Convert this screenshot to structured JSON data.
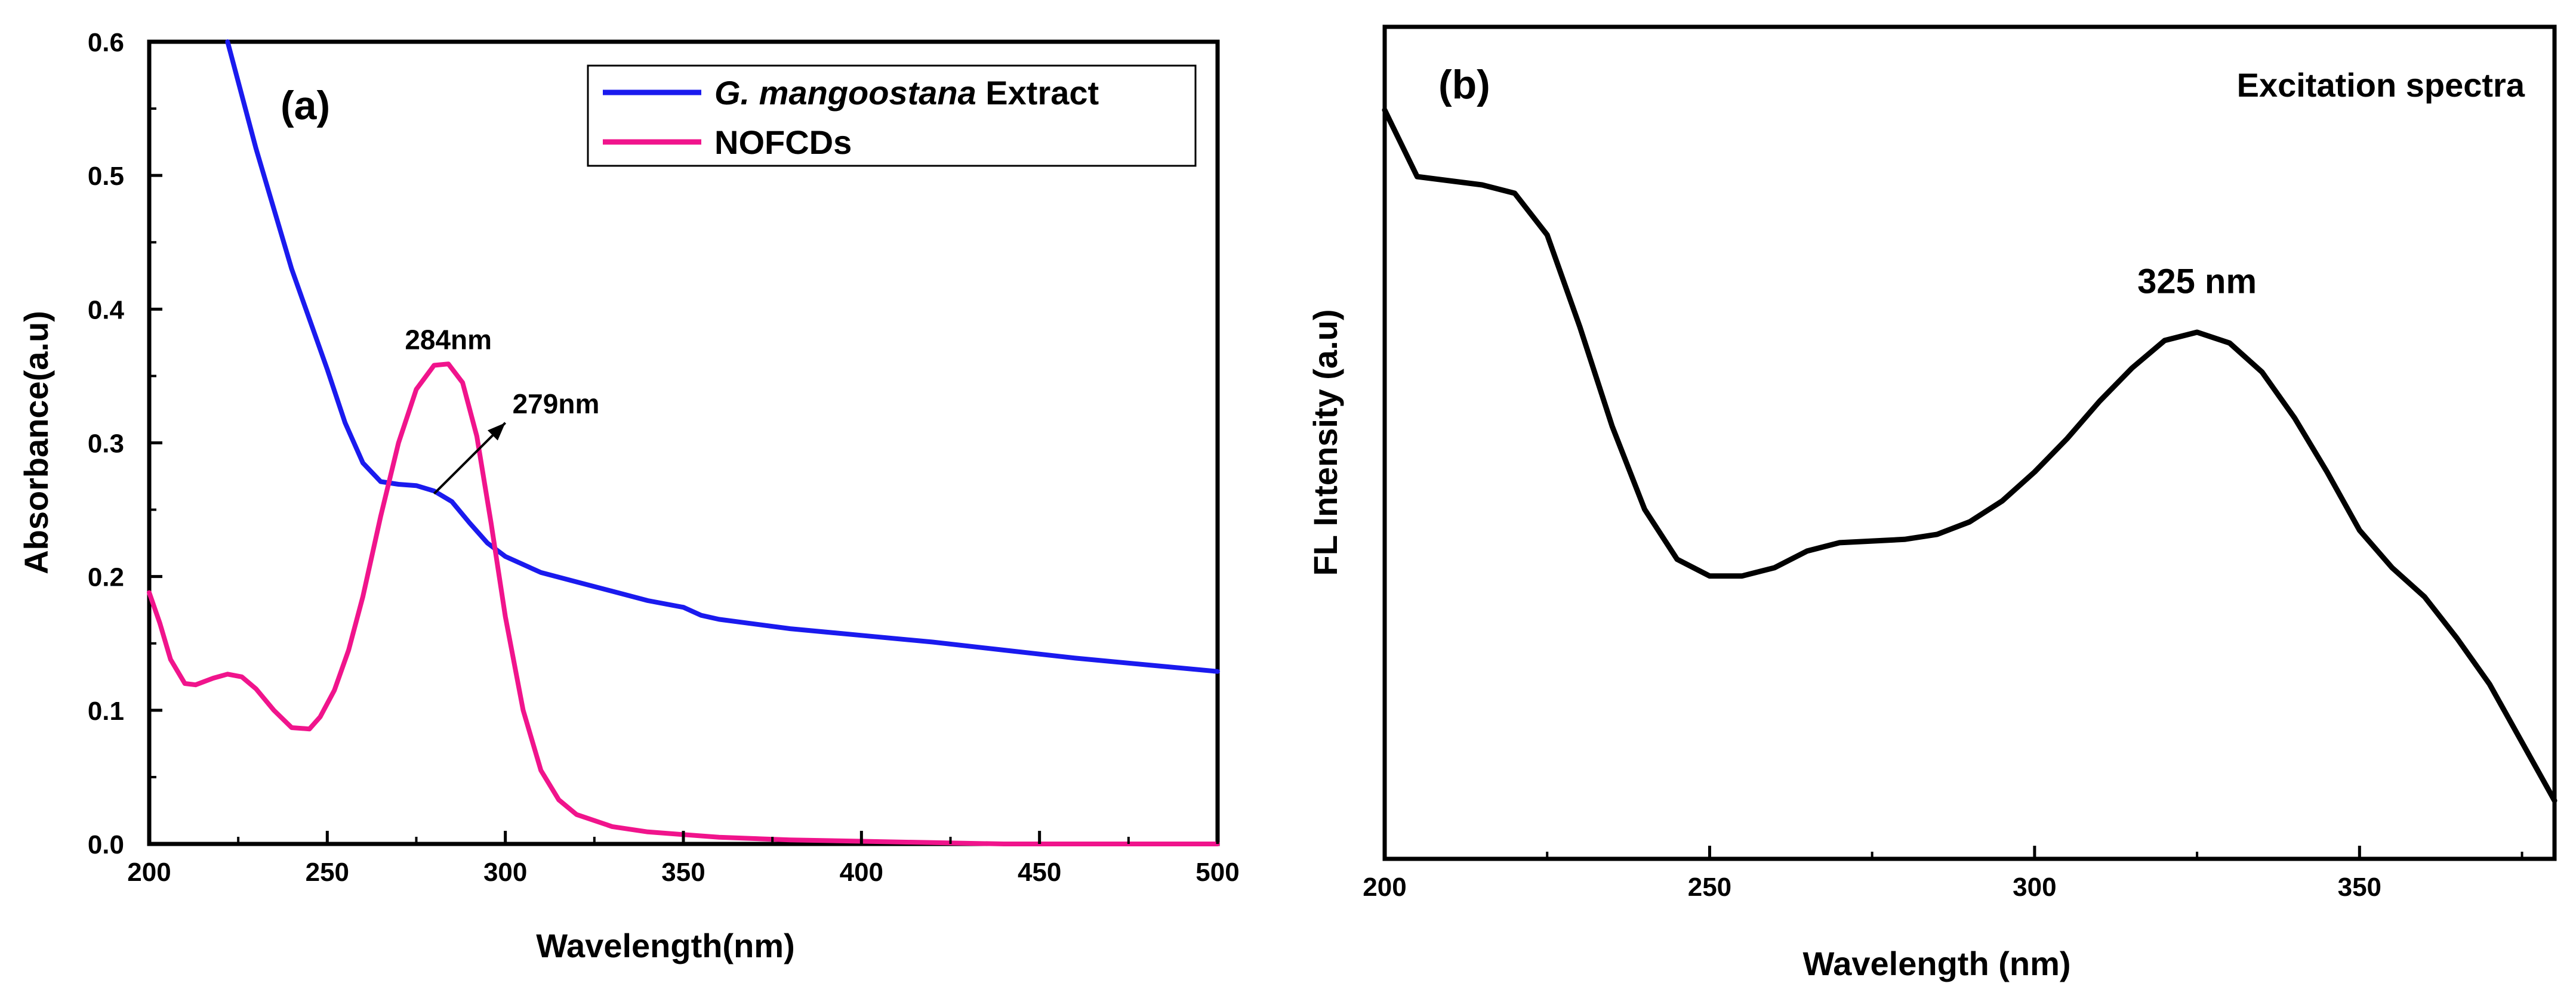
{
  "chart_data": [
    {
      "type": "line",
      "panel_label": "(a)",
      "xlabel": "Wavelength(nm)",
      "ylabel": "Absorbance(a.u)",
      "xlim": [
        200,
        500
      ],
      "ylim": [
        0,
        0.6
      ],
      "xticks": [
        "200",
        "250",
        "300",
        "350",
        "400",
        "450",
        "500"
      ],
      "yticks": [
        "0.0",
        "0.1",
        "0.2",
        "0.3",
        "0.4",
        "0.5",
        "0.6"
      ],
      "legend_position": "top-right",
      "series": [
        {
          "name": "G. mangoostana Extract",
          "legend_italic": "G. mangoostana",
          "legend_rest": " Extract",
          "color": "#1a1aee",
          "x": [
            222,
            230,
            240,
            250,
            255,
            260,
            265,
            270,
            275,
            280,
            285,
            290,
            295,
            300,
            310,
            320,
            330,
            340,
            350,
            355,
            360,
            380,
            400,
            420,
            440,
            460,
            480,
            500
          ],
          "y": [
            0.6,
            0.52,
            0.43,
            0.355,
            0.315,
            0.285,
            0.271,
            0.269,
            0.268,
            0.264,
            0.256,
            0.24,
            0.225,
            0.215,
            0.203,
            0.196,
            0.189,
            0.182,
            0.177,
            0.171,
            0.168,
            0.161,
            0.156,
            0.151,
            0.145,
            0.139,
            0.134,
            0.129
          ]
        },
        {
          "name": "NOFCDs",
          "color": "#f0148c",
          "x": [
            200,
            203,
            206,
            210,
            213,
            218,
            222,
            226,
            230,
            235,
            240,
            245,
            248,
            252,
            256,
            260,
            265,
            270,
            275,
            280,
            284,
            288,
            292,
            296,
            300,
            305,
            310,
            315,
            320,
            330,
            340,
            360,
            380,
            400,
            420,
            440,
            460,
            480,
            500
          ],
          "y": [
            0.188,
            0.165,
            0.138,
            0.12,
            0.119,
            0.124,
            0.127,
            0.125,
            0.116,
            0.1,
            0.087,
            0.086,
            0.095,
            0.115,
            0.145,
            0.185,
            0.245,
            0.3,
            0.34,
            0.358,
            0.359,
            0.345,
            0.305,
            0.24,
            0.17,
            0.1,
            0.055,
            0.033,
            0.022,
            0.013,
            0.009,
            0.005,
            0.003,
            0.002,
            0.001,
            0.0,
            0.0,
            0.0,
            0.0
          ]
        }
      ],
      "annotations": [
        {
          "text": "284nm",
          "x": 284,
          "y": 0.37
        },
        {
          "text": "279nm",
          "arrow_from": [
            280,
            0.262
          ],
          "arrow_to": [
            300,
            0.315
          ],
          "x": 302,
          "y": 0.322
        }
      ]
    },
    {
      "type": "line",
      "panel_label": "(b)",
      "title": "Excitation spectra",
      "xlabel": "Wavelength (nm)",
      "ylabel": "FL Intensity (a.u)",
      "xlim": [
        200,
        380
      ],
      "ylim": [
        0,
        1
      ],
      "xticks": [
        "200",
        "250",
        "300",
        "350"
      ],
      "yticks": [],
      "series": [
        {
          "name": "Excitation",
          "color": "#000000",
          "x": [
            200,
            205,
            215,
            220,
            225,
            230,
            235,
            240,
            245,
            250,
            255,
            260,
            265,
            270,
            275,
            280,
            285,
            290,
            295,
            300,
            305,
            310,
            315,
            320,
            325,
            330,
            335,
            340,
            345,
            350,
            355,
            360,
            365,
            370,
            375,
            380
          ],
          "y": [
            0.9,
            0.82,
            0.81,
            0.8,
            0.75,
            0.64,
            0.52,
            0.42,
            0.36,
            0.34,
            0.34,
            0.35,
            0.37,
            0.38,
            0.382,
            0.384,
            0.39,
            0.405,
            0.43,
            0.465,
            0.505,
            0.55,
            0.59,
            0.623,
            0.633,
            0.62,
            0.585,
            0.53,
            0.465,
            0.395,
            0.35,
            0.315,
            0.265,
            0.21,
            0.14,
            0.07
          ]
        }
      ],
      "annotations": [
        {
          "text": "325 nm",
          "x": 325,
          "y": 0.68
        }
      ]
    }
  ]
}
